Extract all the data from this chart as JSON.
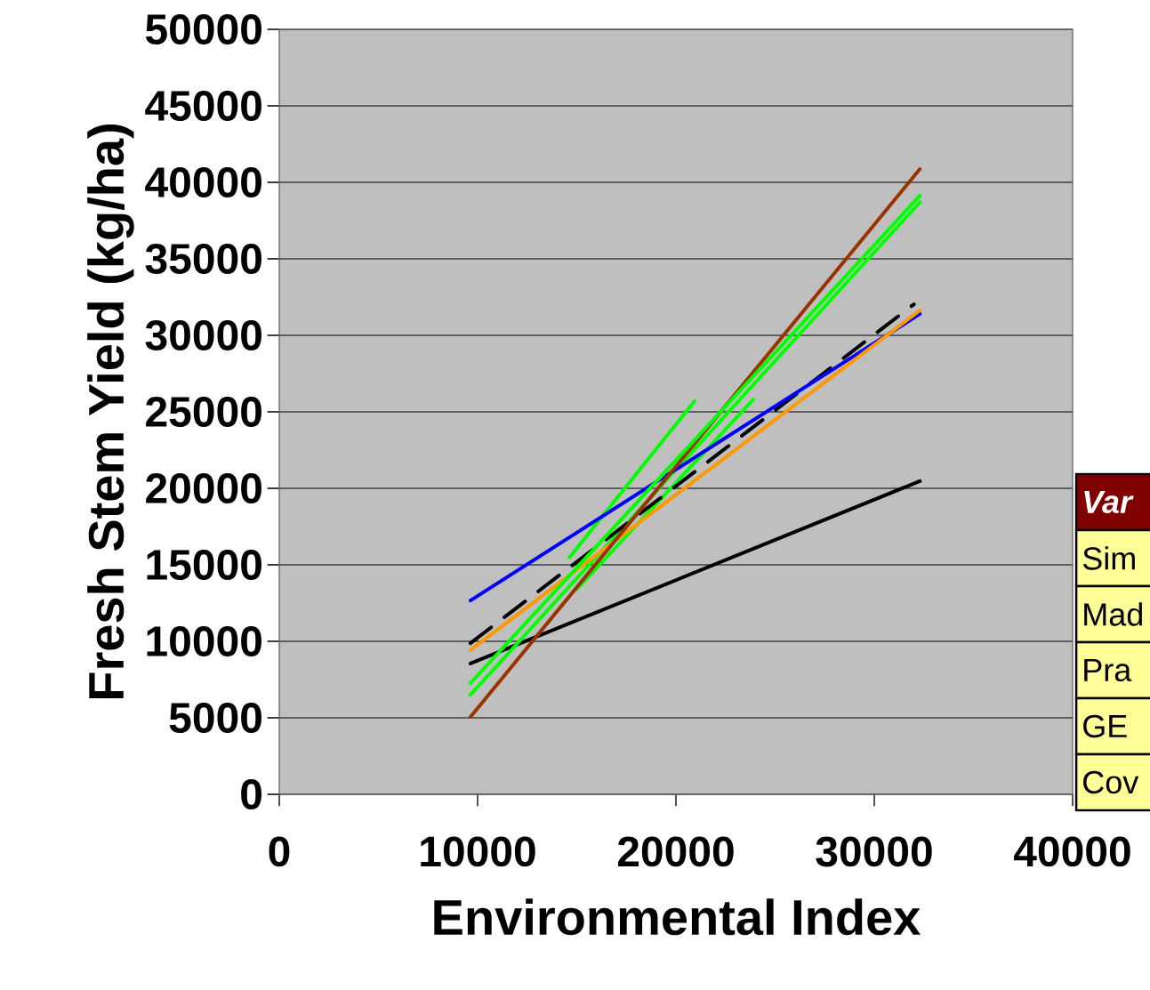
{
  "chart_data": {
    "type": "line",
    "xlabel": "Environmental Index",
    "ylabel": "Fresh Stem Yield (kg/ha)",
    "xlim": [
      0,
      40000
    ],
    "ylim": [
      0,
      50000
    ],
    "xticks": [
      0,
      10000,
      20000,
      30000,
      40000
    ],
    "yticks": [
      0,
      5000,
      10000,
      15000,
      20000,
      25000,
      30000,
      35000,
      40000,
      45000,
      50000
    ],
    "grid": "y",
    "marker": "none",
    "series": [
      {
        "color": "#000000",
        "x": [
          9640,
          32300
        ],
        "values": [
          8550,
          20470
        ]
      },
      {
        "color": "#00ff00",
        "x": [
          9640,
          32300
        ],
        "values": [
          6500,
          38700
        ]
      },
      {
        "color": "#00ff00",
        "x": [
          14640,
          20940
        ],
        "values": [
          15500,
          25700
        ]
      },
      {
        "color": "#00ff00",
        "x": [
          15000,
          23900
        ],
        "values": [
          13400,
          25800
        ]
      },
      {
        "color": "#000000",
        "x": [
          9640,
          32000
        ],
        "values": [
          9880,
          32030
        ],
        "line_style": "dashed"
      },
      {
        "color": "#0000ff",
        "x": [
          9640,
          32300
        ],
        "values": [
          12670,
          31400
        ]
      },
      {
        "color": "#ff9900",
        "x": [
          9640,
          32300
        ],
        "values": [
          9420,
          31630
        ]
      },
      {
        "color": "#993300",
        "x": [
          9640,
          32300
        ],
        "values": [
          5060,
          40870
        ]
      },
      {
        "color": "#00ff00",
        "x": [
          9640,
          32300
        ],
        "values": [
          7270,
          39130
        ]
      }
    ],
    "annotations": [
      "Var",
      "Sim",
      "Mad",
      "Pra",
      "GE",
      "Cov"
    ]
  }
}
